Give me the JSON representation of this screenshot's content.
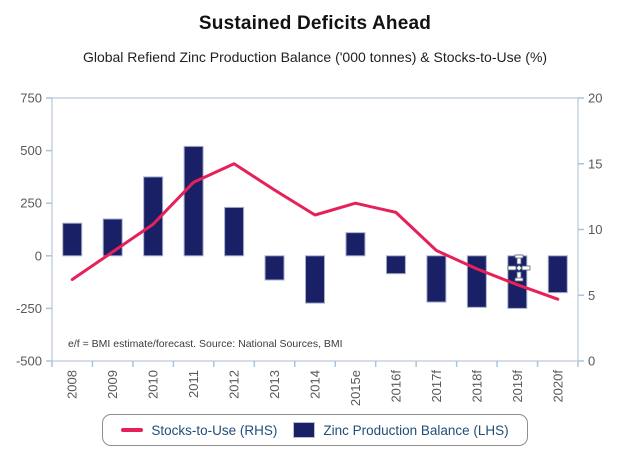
{
  "header": {
    "title": "Sustained Deficits Ahead",
    "subtitle": "Global Refiend Zinc Production Balance ('000 tonnes) & Stocks-to-Use (%)"
  },
  "chart_data": {
    "type": "combo-bar-line",
    "categories": [
      "2008",
      "2009",
      "2010",
      "2011",
      "2012",
      "2013",
      "2014",
      "2015e",
      "2016f",
      "2017f",
      "2018f",
      "2019f",
      "2020f"
    ],
    "series": [
      {
        "name": "Zinc Production Balance (LHS)",
        "type": "bar",
        "axis": "left",
        "color": "#1a2065",
        "values": [
          155,
          175,
          375,
          520,
          230,
          -115,
          -225,
          110,
          -85,
          -220,
          -245,
          -250,
          -175
        ]
      },
      {
        "name": "Stocks-to-Use (RHS)",
        "type": "line",
        "axis": "right",
        "color": "#e6215a",
        "values": [
          6.2,
          8.3,
          10.4,
          13.6,
          15.0,
          13.0,
          11.1,
          12.0,
          11.3,
          8.4,
          7.0,
          5.8,
          4.7
        ]
      }
    ],
    "left_axis": {
      "min": -500,
      "max": 750,
      "ticks": [
        750,
        500,
        250,
        0,
        -250,
        -500
      ]
    },
    "right_axis": {
      "min": 0,
      "max": 20,
      "ticks": [
        20,
        15,
        10,
        5,
        0
      ]
    },
    "grid": "off",
    "legend_position": "bottom",
    "legend": [
      {
        "label": "Stocks-to-Use (RHS)",
        "swatch": "line"
      },
      {
        "label": "Zinc Production Balance (LHS)",
        "swatch": "square"
      }
    ],
    "footnote": "e/f = BMI estimate/forecast. Source: National Sources, BMI"
  },
  "colors": {
    "bar_fill": "#1a2065",
    "bar_border": "#a8b0cc",
    "line": "#e6215a",
    "frame": "#c9d2de",
    "tick": "#a6c5e2",
    "axis_text": "#595959",
    "legend_text": "#1f4e79"
  }
}
